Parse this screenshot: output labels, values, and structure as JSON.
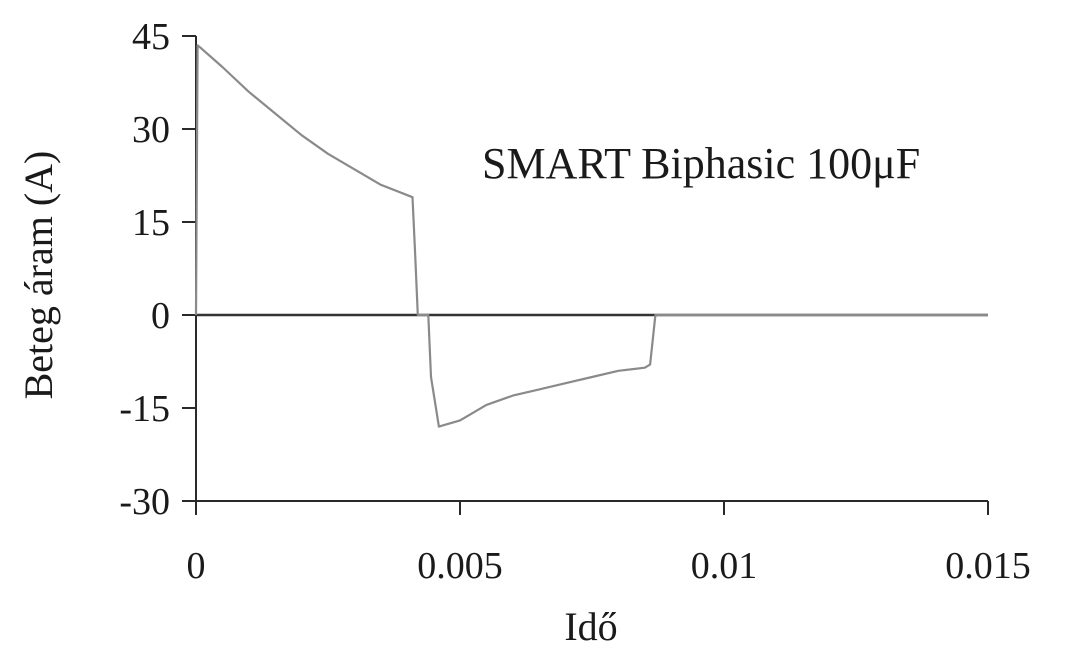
{
  "chart_data": {
    "type": "line",
    "title": "",
    "annotation": "SMART Biphasic 100μF",
    "xlabel": "Idő",
    "ylabel": "Beteg áram (A)",
    "xlim": [
      0,
      0.015
    ],
    "ylim": [
      -30,
      45
    ],
    "x_ticks": [
      0,
      0.005,
      0.01,
      0.015
    ],
    "x_tick_labels": [
      "0",
      "0.005",
      "0.01",
      "0.015"
    ],
    "y_ticks": [
      45,
      30,
      15,
      0,
      -15,
      -30
    ],
    "y_tick_labels": [
      "45",
      "30",
      "15",
      "0",
      "-15",
      "-30"
    ],
    "grid": false,
    "zero_line": true,
    "colors": {
      "series": "#8a8a8a",
      "axes": "#2a2a2a",
      "text": "#1a1a1a"
    },
    "series": [
      {
        "x": [
          0,
          3e-05,
          0.0001,
          0.0005,
          0.001,
          0.0015,
          0.002,
          0.0025,
          0.003,
          0.0035,
          0.0041,
          0.00415,
          0.0042,
          0.0044,
          0.00445,
          0.0046,
          0.005,
          0.0055,
          0.006,
          0.0065,
          0.007,
          0.0075,
          0.008,
          0.0085,
          0.0086,
          0.0087,
          0.009,
          0.01,
          0.012,
          0.015
        ],
        "y": [
          0,
          43.5,
          43,
          40,
          36,
          32.5,
          29,
          26,
          23.5,
          21,
          19,
          10,
          0,
          0,
          -10,
          -18,
          -17,
          -14.5,
          -13,
          -12,
          -11,
          -10,
          -9,
          -8.5,
          -8,
          0,
          0,
          0,
          0,
          0
        ]
      }
    ]
  }
}
